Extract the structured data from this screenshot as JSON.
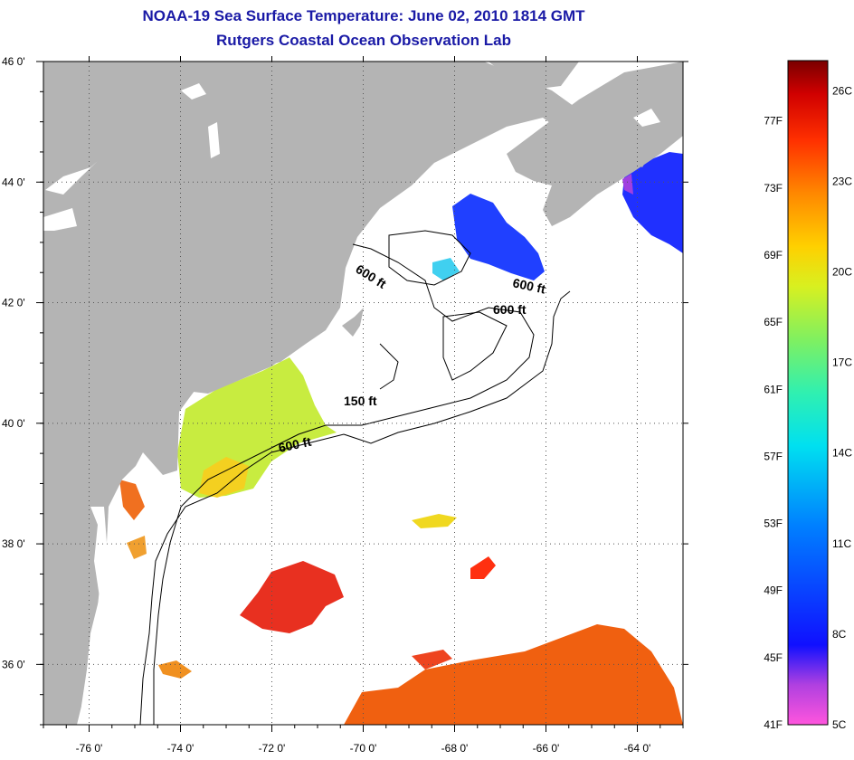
{
  "title": {
    "line1": "NOAA-19 Sea Surface Temperature:  June 02, 2010 1814 GMT",
    "line2": "Rutgers Coastal Ocean Observation Lab"
  },
  "map": {
    "lon_range": [
      -77,
      -63
    ],
    "lat_range": [
      35,
      46
    ],
    "lon_ticks": [
      {
        "value": -76,
        "label": "-76 0'"
      },
      {
        "value": -74,
        "label": "-74 0'"
      },
      {
        "value": -72,
        "label": "-72 0'"
      },
      {
        "value": -70,
        "label": "-70 0'"
      },
      {
        "value": -68,
        "label": "-68 0'"
      },
      {
        "value": -66,
        "label": "-66 0'"
      },
      {
        "value": -64,
        "label": "-64 0'"
      }
    ],
    "lat_ticks": [
      {
        "value": 46,
        "label": "46 0'"
      },
      {
        "value": 44,
        "label": "44 0'"
      },
      {
        "value": 42,
        "label": "42 0'"
      },
      {
        "value": 40,
        "label": "40 0'"
      },
      {
        "value": 38,
        "label": "38 0'"
      },
      {
        "value": 36,
        "label": "36 0'"
      }
    ],
    "grid": "dotted",
    "land_color": "#b4b4b4",
    "contour_labels": {
      "c600_a": "600 ft",
      "c600_b": "600 ft",
      "c600_c": "600 ft",
      "c150": "150 ft",
      "c600_d": "600 ft"
    }
  },
  "colorbar": {
    "stops": [
      "#ff55dd",
      "#b040e0",
      "#1010ff",
      "#0080ff",
      "#00e0f0",
      "#30f0b0",
      "#80f060",
      "#d8f020",
      "#ffd000",
      "#ff8800",
      "#ff3000",
      "#d00000",
      "#7a0000"
    ],
    "fahrenheit": [
      "41F",
      "45F",
      "49F",
      "53F",
      "57F",
      "61F",
      "65F",
      "69F",
      "73F",
      "77F"
    ],
    "celsius": [
      "5C",
      "8C",
      "11C",
      "14C",
      "17C",
      "20C",
      "23C",
      "26C"
    ]
  }
}
